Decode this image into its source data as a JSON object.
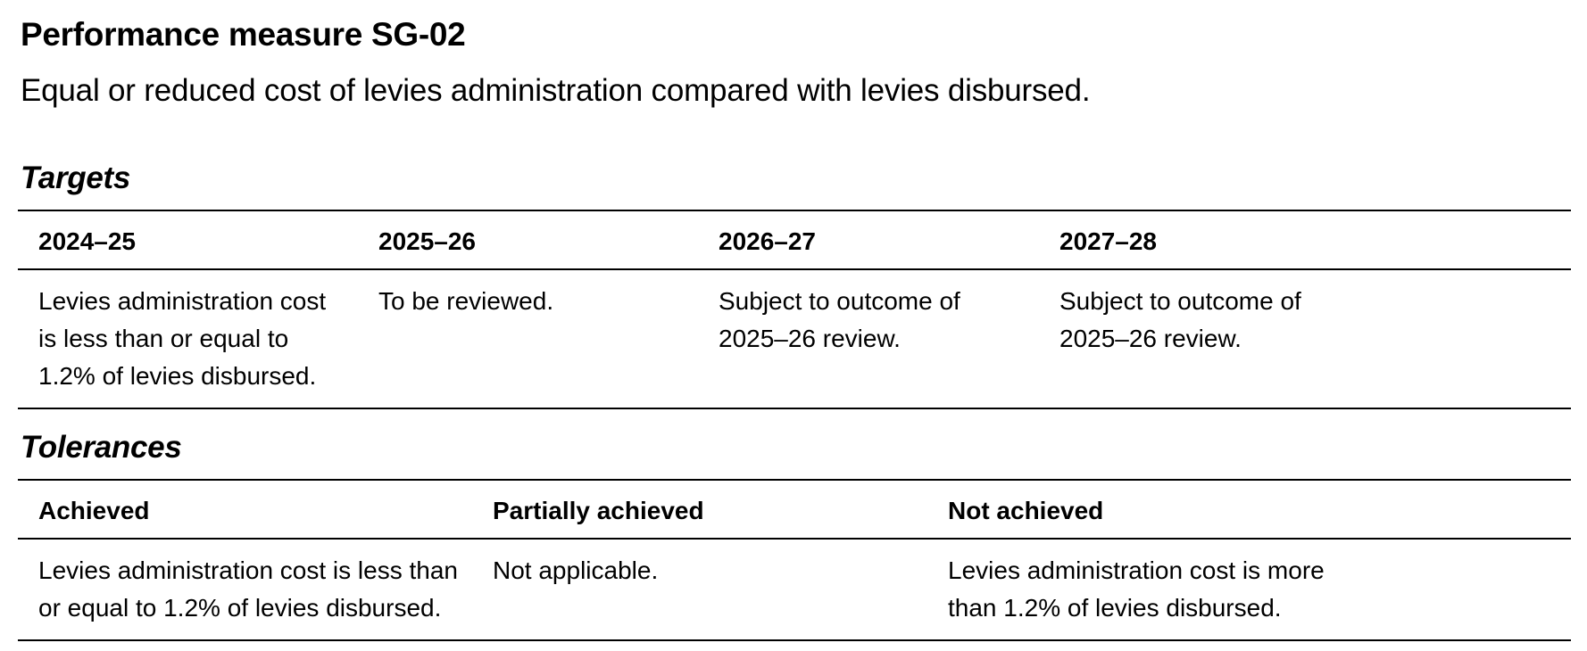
{
  "title": "Performance measure SG-02",
  "subtitle": "Equal or reduced cost of levies administration compared with levies disbursed.",
  "targets": {
    "heading": "Targets",
    "columns": [
      {
        "header": "2024–25",
        "value": "Levies administration cost is less than or equal to 1.2% of levies disbursed."
      },
      {
        "header": "2025–26",
        "value": "To be reviewed."
      },
      {
        "header": "2026–27",
        "value": "Subject to outcome of 2025–26 review."
      },
      {
        "header": "2027–28",
        "value": "Subject to outcome of 2025–26 review."
      }
    ]
  },
  "tolerances": {
    "heading": "Tolerances",
    "columns": [
      {
        "header": "Achieved",
        "value": "Levies administration cost is less than or equal to 1.2% of levies disbursed."
      },
      {
        "header": "Partially achieved",
        "value": "Not applicable."
      },
      {
        "header": "Not achieved",
        "value": "Levies administration cost is more than 1.2% of levies disbursed."
      }
    ]
  }
}
